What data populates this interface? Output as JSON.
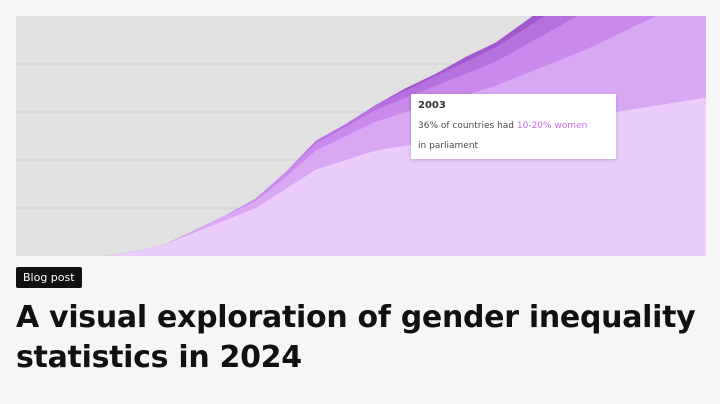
{
  "blog_card": {
    "badge_label": "Blog post",
    "title_line1": "A visual exploration of gender inequality",
    "title_line2": "statistics in 2024"
  },
  "tooltip": {
    "year": "2003",
    "text_before": "36% of countries had ",
    "highlight": "10-20% women",
    "text_after": "in parliament"
  },
  "colors": {
    "background": "#e1e1e1",
    "layer_1": "#ebcdfb",
    "layer_2": "#d9a8f5",
    "layer_3": "#c98aeb",
    "layer_4": "#b771de",
    "layer_5": "#a05acc",
    "highlight": "#c36ce3"
  },
  "chart_data": {
    "type": "area",
    "stacked": true,
    "grid": true,
    "series": [
      {
        "values": [
          0,
          0,
          0,
          0,
          2,
          5,
          10,
          15,
          20,
          28,
          36,
          40,
          44,
          46,
          48,
          50,
          52,
          54,
          56,
          58,
          60,
          62,
          64,
          66
        ]
      },
      {
        "values": [
          0,
          0,
          0,
          0,
          0,
          0,
          1,
          2,
          3,
          5,
          8,
          10,
          12,
          14,
          15,
          17,
          19,
          22,
          25,
          28,
          32,
          36,
          40,
          44
        ]
      },
      {
        "values": [
          0,
          0,
          0,
          0,
          0,
          0,
          0,
          0,
          1,
          2,
          3,
          4,
          5,
          6,
          8,
          9,
          10,
          12,
          14,
          16,
          19,
          22,
          26,
          30
        ]
      },
      {
        "values": [
          0,
          0,
          0,
          0,
          0,
          0,
          0,
          0,
          0,
          0,
          1,
          1,
          2,
          3,
          4,
          5,
          6,
          7,
          8,
          10,
          12,
          14,
          17,
          20
        ]
      },
      {
        "values": [
          0,
          0,
          0,
          0,
          0,
          0,
          0,
          0,
          0,
          0,
          0,
          0,
          0,
          1,
          1,
          2,
          2,
          3,
          4,
          5,
          6,
          8,
          10,
          12
        ]
      }
    ]
  }
}
